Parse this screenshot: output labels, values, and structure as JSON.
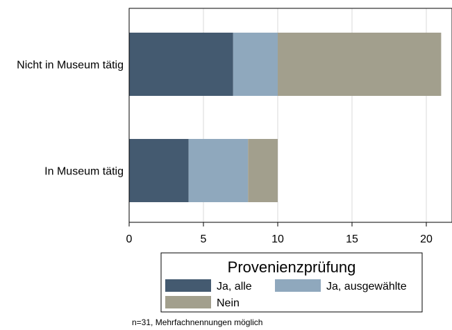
{
  "chart_data": {
    "type": "bar",
    "orientation": "horizontal",
    "stacked": true,
    "categories": [
      "Nicht in Museum tätig",
      "In Museum tätig"
    ],
    "series": [
      {
        "name": "Ja, alle",
        "values": [
          7,
          4
        ],
        "color": "#445a70"
      },
      {
        "name": "Ja, ausgewählte",
        "values": [
          3,
          4
        ],
        "color": "#8fa8bd"
      },
      {
        "name": "Nein",
        "values": [
          11,
          2
        ],
        "color": "#a29f8d"
      }
    ],
    "xlim": [
      0,
      22
    ],
    "xticks": [
      0,
      5,
      10,
      15,
      20
    ],
    "grid": true,
    "legend": {
      "title": "Provenienzprüfung",
      "position": "bottom"
    }
  },
  "note": "n=31, Mehrfachnennungen möglich"
}
